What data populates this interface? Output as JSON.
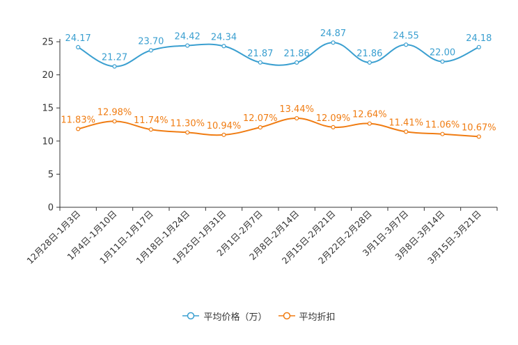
{
  "chart_data": {
    "type": "line",
    "categories": [
      "12月28日-1月3日",
      "1月4日-1月10日",
      "1月11日-1月17日",
      "1月18日-1月24日",
      "1月25日-1月31日",
      "2月1日-2月7日",
      "2月8日-2月14日",
      "2月15日-2月21日",
      "2月22日-2月28日",
      "3月1日-3月7日",
      "3月8日-3月14日",
      "3月15日-3月21日"
    ],
    "series": [
      {
        "name": "平均价格（万）",
        "color": "#3a9fd0",
        "values": [
          24.17,
          21.27,
          23.7,
          24.42,
          24.34,
          21.87,
          21.86,
          24.87,
          21.86,
          24.55,
          22.0,
          24.18
        ],
        "labels": [
          "24.17",
          "21.27",
          "23.70",
          "24.42",
          "24.34",
          "21.87",
          "21.86",
          "24.87",
          "21.86",
          "24.55",
          "22.00",
          "24.18"
        ]
      },
      {
        "name": "平均折扣",
        "color": "#f07c12",
        "values": [
          11.83,
          12.98,
          11.74,
          11.3,
          10.94,
          12.07,
          13.44,
          12.09,
          12.64,
          11.41,
          11.06,
          10.67
        ],
        "labels": [
          "11.83%",
          "12.98%",
          "11.74%",
          "11.30%",
          "10.94%",
          "12.07%",
          "13.44%",
          "12.09%",
          "12.64%",
          "11.41%",
          "11.06%",
          "10.67%"
        ]
      }
    ],
    "yticks": [
      "0",
      "5",
      "10",
      "15",
      "20",
      "25"
    ],
    "ylim": [
      0,
      25
    ],
    "legend": {
      "position": "bottom-center"
    },
    "grid": false
  }
}
